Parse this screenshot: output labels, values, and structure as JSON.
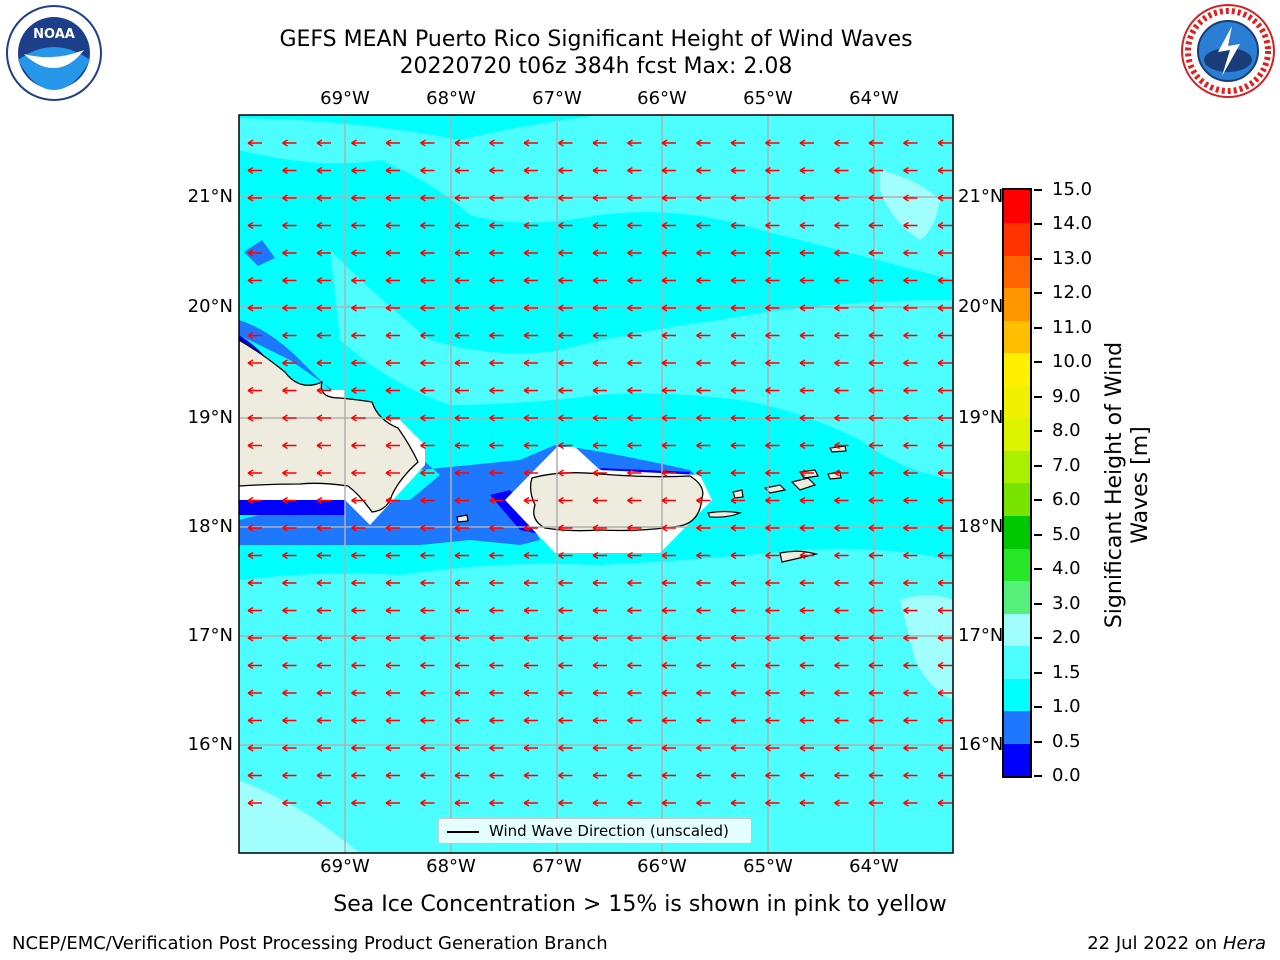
{
  "title_line1": "GEFS MEAN Puerto Rico Significant Height of Wind Waves",
  "title_line2": "20220720 t06z 384h fcst   Max: 2.08",
  "logos": {
    "left": {
      "icon": "noaa-logo",
      "text": "NOAA",
      "ring_text": "NATIONAL OCEANIC AND ATMOSPHERIC ADMINISTRATION · U.S. DEPARTMENT OF COMMERCE"
    },
    "right": {
      "icon": "national-weather-service-logo",
      "ring_text": "NATIONAL WEATHER SERVICE"
    }
  },
  "map": {
    "lon_labels": [
      "69°W",
      "68°W",
      "67°W",
      "66°W",
      "65°W",
      "64°W"
    ],
    "lat_labels": [
      "21°N",
      "20°N",
      "19°N",
      "18°N",
      "17°N",
      "16°N"
    ],
    "lon_range": [
      -70.0,
      -63.3
    ],
    "lat_range": [
      15.0,
      21.75
    ],
    "grid": true,
    "land_color": "#eeecde",
    "vector_color": "#ff0000",
    "vector_direction": "westward"
  },
  "colorbar": {
    "title": "Significant Height of Wind Waves [m]",
    "tick_labels": [
      "15.0",
      "14.0",
      "13.0",
      "12.0",
      "11.0",
      "10.0",
      "9.0",
      "8.0",
      "7.0",
      "6.0",
      "5.0",
      "4.0",
      "3.0",
      "2.0",
      "1.5",
      "1.0",
      "0.5",
      "0.0"
    ],
    "segment_colors_bottom_to_top": [
      "#0000ff",
      "#1e78ff",
      "#00ffff",
      "#4dfeff",
      "#a0fffd",
      "#55f07a",
      "#28e628",
      "#00c800",
      "#78e400",
      "#a8ef00",
      "#dcf400",
      "#f0f000",
      "#fff000",
      "#ffbe00",
      "#ff9600",
      "#ff6400",
      "#ff3200",
      "#ff0000"
    ]
  },
  "legend_text": "Wind Wave Direction (unscaled)",
  "sea_ice_note": "Sea Ice Concentration > 15% is shown in pink to yellow",
  "footer_left": "NCEP/EMC/Verification Post Processing Product Generation Branch",
  "footer_right_date": "22 Jul 2022 on ",
  "footer_right_machine": "Hera"
}
